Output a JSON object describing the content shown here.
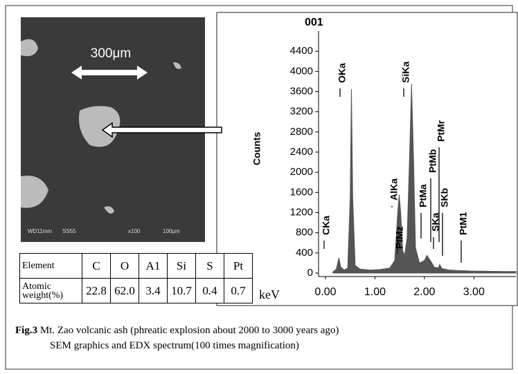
{
  "chart_data": {
    "type": "area",
    "title": "001",
    "ylabel": "Counts",
    "xlabel": "keV",
    "x": [
      0.15,
      0.22,
      0.27,
      0.31,
      0.38,
      0.45,
      0.5,
      0.525,
      0.55,
      0.6,
      0.7,
      0.9,
      1.1,
      1.3,
      1.4,
      1.46,
      1.49,
      1.52,
      1.56,
      1.6,
      1.65,
      1.7,
      1.74,
      1.78,
      1.82,
      1.9,
      2.0,
      2.05,
      2.12,
      2.2,
      2.28,
      2.31,
      2.35,
      2.5,
      2.7,
      3.0,
      3.3,
      3.6,
      3.85
    ],
    "series": [
      {
        "name": "Counts",
        "color": "#555555",
        "values": [
          20,
          80,
          300,
          120,
          60,
          100,
          1500,
          3650,
          1500,
          150,
          80,
          60,
          70,
          100,
          250,
          1200,
          1550,
          1200,
          450,
          350,
          700,
          2300,
          3750,
          2300,
          500,
          200,
          250,
          350,
          250,
          120,
          100,
          170,
          90,
          60,
          50,
          40,
          35,
          30,
          30
        ]
      }
    ],
    "xlim": [
      -0.14,
      3.85
    ],
    "ylim": [
      0,
      4800
    ],
    "xticks": [
      {
        "value": 0,
        "label": "0.00"
      },
      {
        "value": 1,
        "label": "1.00"
      },
      {
        "value": 2,
        "label": "2.00"
      },
      {
        "value": 3,
        "label": "3.00"
      }
    ],
    "yticks": [
      0,
      400,
      800,
      1200,
      1600,
      2000,
      2400,
      2800,
      3200,
      3600,
      4000,
      4400
    ],
    "annotations": [
      "CKa",
      "OKa",
      "AlKa",
      "PtMz",
      "SiKa",
      "PtMa",
      "PtMb",
      "PtMr",
      "SKa",
      "SKb",
      "PtM1"
    ]
  },
  "sem": {
    "scale_label": "300μm",
    "footer": [
      "WD11mm",
      "SS55",
      "x100",
      "100μm"
    ]
  },
  "table": {
    "rows": [
      [
        "Element",
        "C",
        "O",
        "A1",
        "Si",
        "S",
        "Pt"
      ],
      [
        "Atomic weight(%)",
        "22.8",
        "62.0",
        "3.4",
        "10.7",
        "0.4",
        "0.7"
      ]
    ]
  },
  "caption": {
    "label": "Fig.3",
    "line1": "Mt. Zao volcanic ash (phreatic explosion about 2000 to 3000 years ago)",
    "line2": "SEM graphics and EDX spectrum(100 times magnification)"
  }
}
